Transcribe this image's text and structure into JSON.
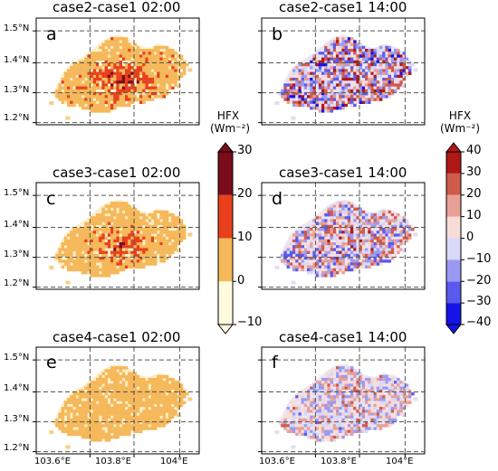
{
  "panels": [
    {
      "id": "a",
      "title": "case2-case1 02:00",
      "label": "a",
      "scheme": "night",
      "intensity": 1.0
    },
    {
      "id": "b",
      "title": "case2-case1 14:00",
      "label": "b",
      "scheme": "day",
      "intensity": 1.0
    },
    {
      "id": "c",
      "title": "case3-case1 02:00",
      "label": "c",
      "scheme": "night",
      "intensity": 0.8
    },
    {
      "id": "d",
      "title": "case3-case1 14:00",
      "label": "d",
      "scheme": "day",
      "intensity": 0.85
    },
    {
      "id": "e",
      "title": "case4-case1 02:00",
      "label": "e",
      "scheme": "night",
      "intensity": 0.3
    },
    {
      "id": "f",
      "title": "case4-case1 14:00",
      "label": "f",
      "scheme": "day",
      "intensity": 0.6
    }
  ],
  "lat_labels": [
    "1.5°N",
    "1.4°N",
    "1.3°N",
    "1.2°N"
  ],
  "lon_labels": [
    "103.6°E",
    "103.8°E",
    "104°E"
  ],
  "colorbar_night": {
    "title_line1": "HFX",
    "title_line2": "(Wm⁻²)",
    "ticks": [
      "30",
      "20",
      "10",
      "0",
      "−10"
    ],
    "bins": [
      {
        "from": -10,
        "to": 0,
        "color": "#fffbe0"
      },
      {
        "from": 0,
        "to": 10,
        "color": "#f5b85a"
      },
      {
        "from": 10,
        "to": 20,
        "color": "#e8401c"
      },
      {
        "from": 20,
        "to": 30,
        "color": "#7a0c1c"
      }
    ]
  },
  "colorbar_day": {
    "title_line1": "HFX",
    "title_line2": "(Wm⁻²)",
    "ticks": [
      "40",
      "30",
      "20",
      "10",
      "0",
      "−10",
      "−20",
      "−30",
      "−40"
    ],
    "bins": [
      {
        "from": -40,
        "to": -30,
        "color": "#1414e6"
      },
      {
        "from": -30,
        "to": -20,
        "color": "#5a5aee"
      },
      {
        "from": -20,
        "to": -10,
        "color": "#9a9af4"
      },
      {
        "from": -10,
        "to": 0,
        "color": "#d8d8f8"
      },
      {
        "from": 0,
        "to": 10,
        "color": "#f8dcd8"
      },
      {
        "from": 10,
        "to": 20,
        "color": "#e8a096"
      },
      {
        "from": 20,
        "to": 30,
        "color": "#d05a4c"
      },
      {
        "from": 30,
        "to": 40,
        "color": "#b01818"
      }
    ]
  }
}
